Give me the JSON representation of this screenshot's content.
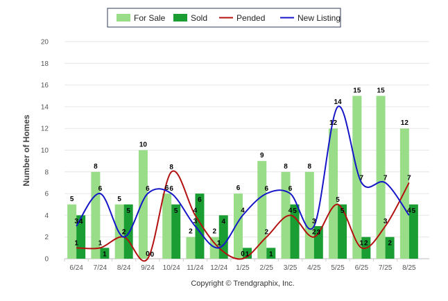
{
  "chart_data": {
    "type": "bar",
    "categories": [
      "6/24",
      "7/24",
      "8/24",
      "9/24",
      "10/24",
      "11/24",
      "12/24",
      "1/25",
      "2/25",
      "3/25",
      "4/25",
      "5/25",
      "6/25",
      "7/25",
      "8/25"
    ],
    "ylabel": "Number of Homes",
    "xlabel": "",
    "ylim": [
      0,
      20
    ],
    "yticks": [
      0,
      2,
      4,
      6,
      8,
      10,
      12,
      14,
      16,
      18,
      20
    ],
    "grid": true,
    "legend_position": "top-center",
    "series": [
      {
        "name": "For Sale",
        "kind": "bar",
        "color": "#99dd88",
        "values": [
          5,
          8,
          5,
          10,
          6,
          2,
          2,
          6,
          9,
          8,
          8,
          12,
          15,
          15,
          12
        ]
      },
      {
        "name": "Sold",
        "kind": "bar",
        "color": "#1a9e34",
        "values": [
          4,
          1,
          5,
          0,
          5,
          6,
          4,
          1,
          1,
          5,
          3,
          5,
          2,
          2,
          5
        ]
      },
      {
        "name": "Pended",
        "kind": "line",
        "color": "#b31010",
        "values": [
          1,
          1,
          2,
          0,
          8,
          4,
          1,
          0,
          2,
          4,
          2,
          5,
          1,
          3,
          7
        ]
      },
      {
        "name": "New Listing",
        "kind": "line",
        "color": "#1515c8",
        "values": [
          3,
          6,
          2,
          6,
          6,
          3,
          1,
          4,
          6,
          6,
          3,
          14,
          7,
          7,
          4
        ]
      }
    ],
    "copyright": "Copyright © Trendgraphix, Inc."
  }
}
